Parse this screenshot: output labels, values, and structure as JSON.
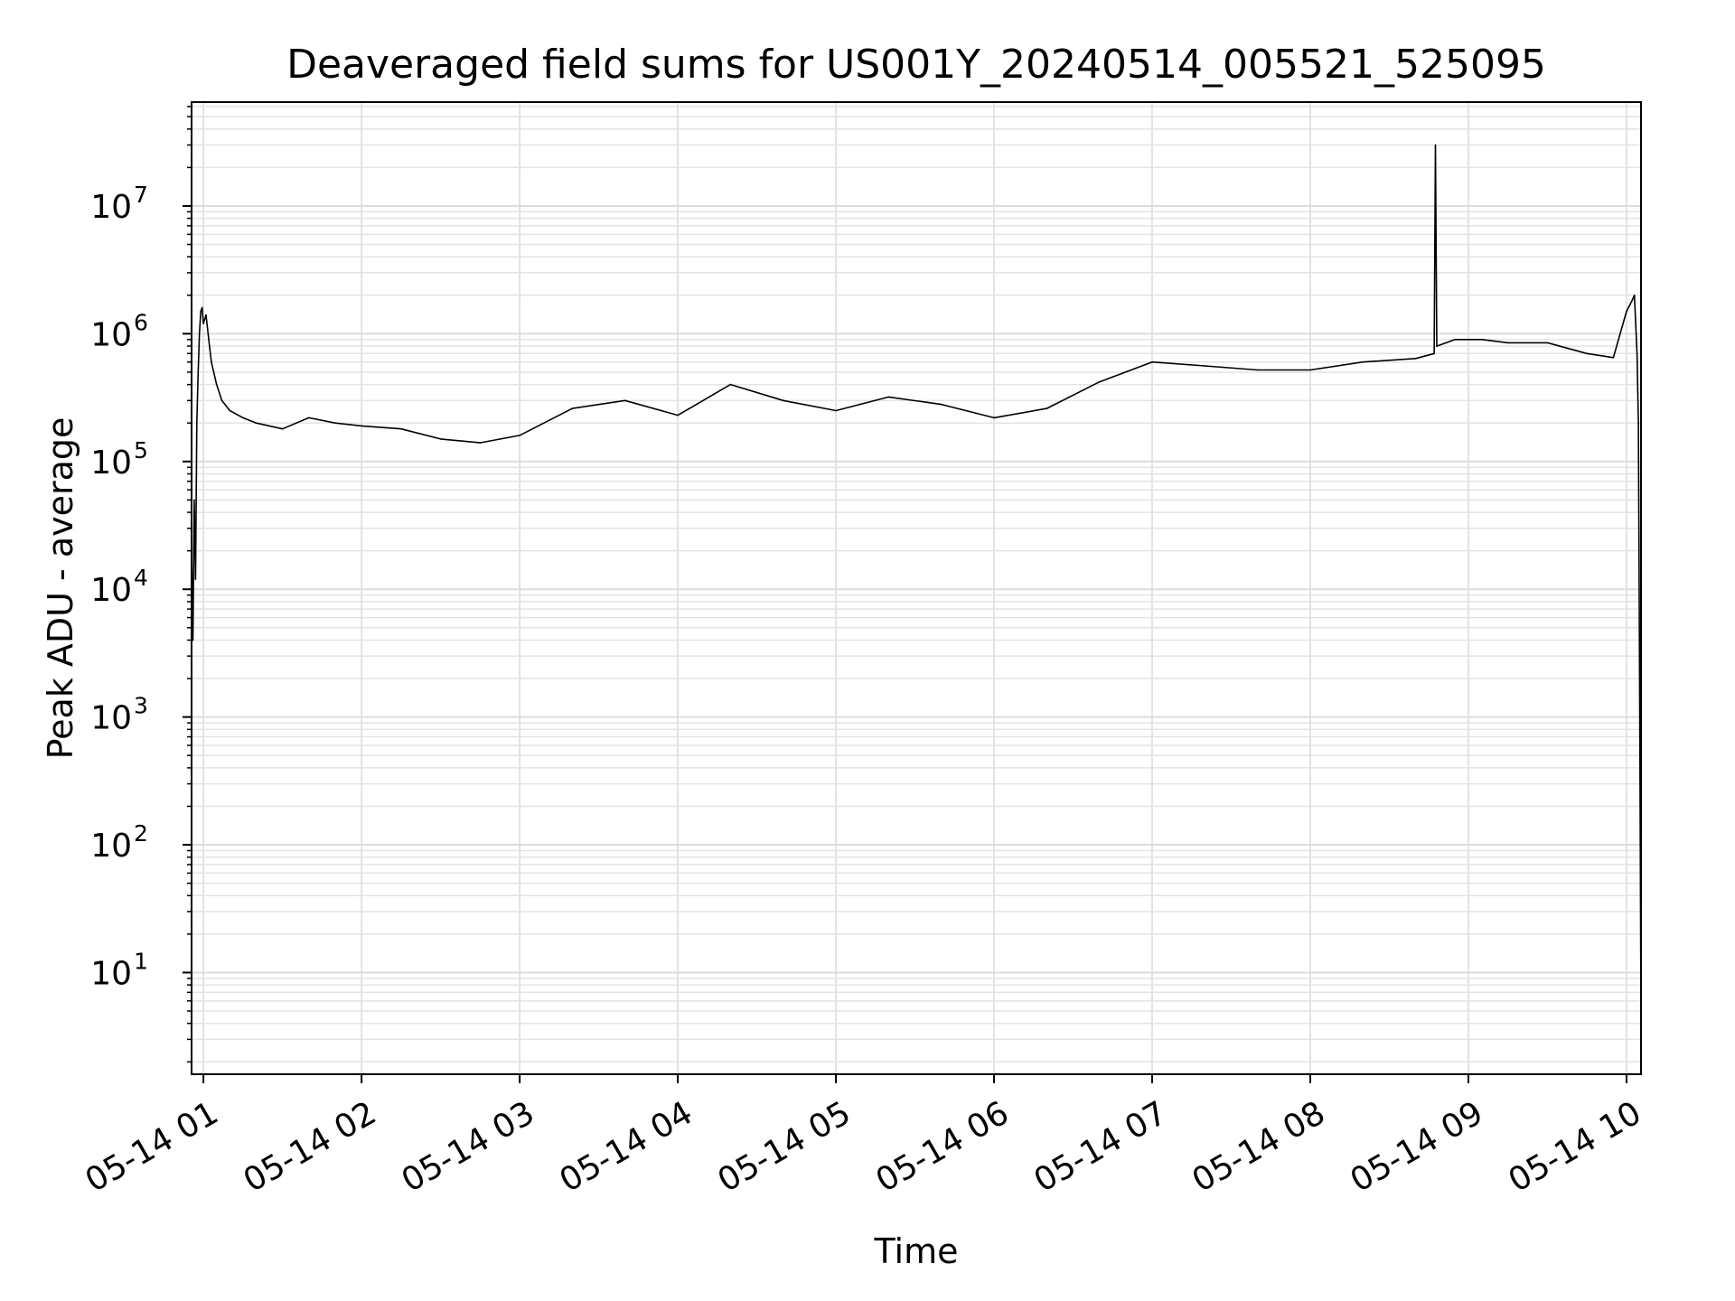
{
  "chart_data": {
    "type": "line",
    "title": "Deaveraged field sums for US001Y_20240514_005521_525095",
    "xlabel": "Time",
    "ylabel": "Peak ADU - average",
    "yscale": "log",
    "ylim": [
      1.6,
      65000000
    ],
    "xlim": [
      "2024-05-14T00:55:30",
      "2024-05-14T10:05:30"
    ],
    "grid": true,
    "series_color": "#000000",
    "x_ticks": [
      {
        "label": "05-14 01",
        "time": "2024-05-14T01:00:00"
      },
      {
        "label": "05-14 02",
        "time": "2024-05-14T02:00:00"
      },
      {
        "label": "05-14 03",
        "time": "2024-05-14T03:00:00"
      },
      {
        "label": "05-14 04",
        "time": "2024-05-14T04:00:00"
      },
      {
        "label": "05-14 05",
        "time": "2024-05-14T05:00:00"
      },
      {
        "label": "05-14 06",
        "time": "2024-05-14T06:00:00"
      },
      {
        "label": "05-14 07",
        "time": "2024-05-14T07:00:00"
      },
      {
        "label": "05-14 08",
        "time": "2024-05-14T08:00:00"
      },
      {
        "label": "05-14 09",
        "time": "2024-05-14T09:00:00"
      },
      {
        "label": "05-14 10",
        "time": "2024-05-14T10:00:00"
      }
    ],
    "y_ticks": [
      {
        "base": "10",
        "exp": "1",
        "value": 10
      },
      {
        "base": "10",
        "exp": "2",
        "value": 100
      },
      {
        "base": "10",
        "exp": "3",
        "value": 1000
      },
      {
        "base": "10",
        "exp": "4",
        "value": 10000
      },
      {
        "base": "10",
        "exp": "5",
        "value": 100000
      },
      {
        "base": "10",
        "exp": "6",
        "value": 1000000
      },
      {
        "base": "10",
        "exp": "7",
        "value": 10000000
      }
    ],
    "series": [
      {
        "x": [
          "2024-05-14T00:55:30",
          "2024-05-14T00:56:00",
          "2024-05-14T00:56:30",
          "2024-05-14T00:57:00",
          "2024-05-14T00:57:30",
          "2024-05-14T00:58:00",
          "2024-05-14T00:58:30",
          "2024-05-14T00:59:00",
          "2024-05-14T00:59:30",
          "2024-05-14T01:00:00",
          "2024-05-14T01:01:00",
          "2024-05-14T01:02:00",
          "2024-05-14T01:03:00",
          "2024-05-14T01:05:00",
          "2024-05-14T01:07:00",
          "2024-05-14T01:10:00",
          "2024-05-14T01:15:00",
          "2024-05-14T01:20:00",
          "2024-05-14T01:30:00",
          "2024-05-14T01:40:00",
          "2024-05-14T01:50:00",
          "2024-05-14T02:00:00",
          "2024-05-14T02:15:00",
          "2024-05-14T02:30:00",
          "2024-05-14T02:45:00",
          "2024-05-14T03:00:00",
          "2024-05-14T03:20:00",
          "2024-05-14T03:40:00",
          "2024-05-14T04:00:00",
          "2024-05-14T04:20:00",
          "2024-05-14T04:40:00",
          "2024-05-14T05:00:00",
          "2024-05-14T05:20:00",
          "2024-05-14T05:40:00",
          "2024-05-14T06:00:00",
          "2024-05-14T06:20:00",
          "2024-05-14T06:40:00",
          "2024-05-14T07:00:00",
          "2024-05-14T07:20:00",
          "2024-05-14T07:40:00",
          "2024-05-14T08:00:00",
          "2024-05-14T08:20:00",
          "2024-05-14T08:40:00",
          "2024-05-14T08:47:00",
          "2024-05-14T08:47:30",
          "2024-05-14T08:48:00",
          "2024-05-14T08:55:00",
          "2024-05-14T09:05:00",
          "2024-05-14T09:15:00",
          "2024-05-14T09:30:00",
          "2024-05-14T09:45:00",
          "2024-05-14T09:55:00",
          "2024-05-14T10:00:00",
          "2024-05-14T10:02:00",
          "2024-05-14T10:03:00",
          "2024-05-14T10:04:00",
          "2024-05-14T10:04:30",
          "2024-05-14T10:05:00",
          "2024-05-14T10:05:30"
        ],
        "y": [
          20000,
          4000,
          50000,
          12000,
          200000,
          500000,
          1000000,
          1500000,
          1600000,
          1200000,
          1400000,
          900000,
          600000,
          400000,
          300000,
          250000,
          220000,
          200000,
          180000,
          220000,
          200000,
          190000,
          180000,
          150000,
          140000,
          160000,
          260000,
          300000,
          230000,
          400000,
          300000,
          250000,
          320000,
          280000,
          220000,
          260000,
          420000,
          600000,
          560000,
          520000,
          520000,
          600000,
          640000,
          700000,
          30000000,
          800000,
          900000,
          900000,
          850000,
          850000,
          700000,
          650000,
          1500000,
          1800000,
          2000000,
          700000,
          200000,
          1500,
          4
        ]
      }
    ]
  }
}
